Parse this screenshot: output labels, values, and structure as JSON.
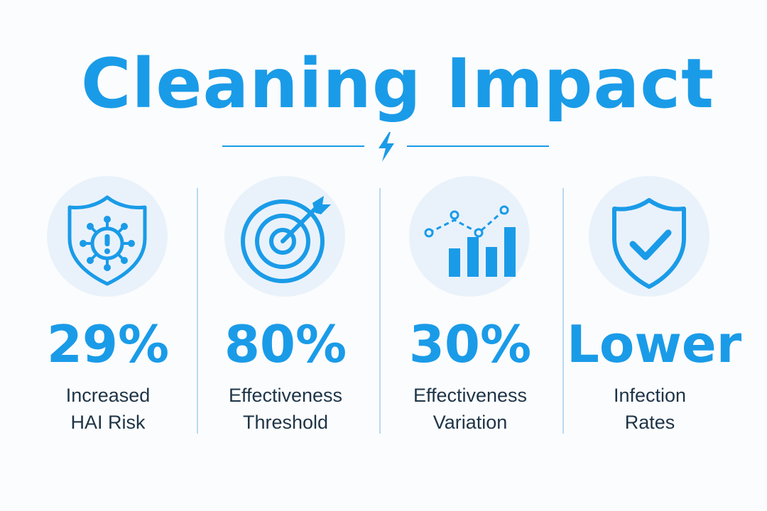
{
  "title": "Cleaning Impact",
  "colors": {
    "accent": "#1a9be8",
    "icon_bg": "#e9f2fb",
    "label_text": "#1e3447",
    "separator": "#b9d9f2"
  },
  "stats": [
    {
      "icon": "shield-virus-alert-icon",
      "value": "29%",
      "label_line1": "Increased",
      "label_line2": "HAI Risk"
    },
    {
      "icon": "target-arrow-icon",
      "value": "80%",
      "label_line1": "Effectiveness",
      "label_line2": "Threshold"
    },
    {
      "icon": "bar-line-chart-icon",
      "value": "30%",
      "label_line1": "Effectiveness",
      "label_line2": "Variation"
    },
    {
      "icon": "shield-check-icon",
      "value": "Lower",
      "label_line1": "Infection",
      "label_line2": "Rates"
    }
  ]
}
